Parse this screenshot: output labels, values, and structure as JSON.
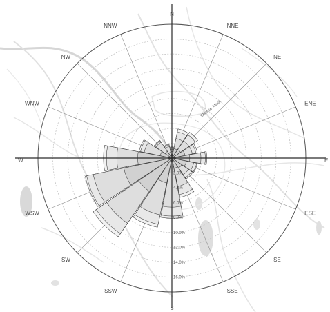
{
  "chart_data": {
    "type": "polar-bar",
    "directions": [
      "N",
      "NNE",
      "NE",
      "ENE",
      "E",
      "ESE",
      "SE",
      "SSE",
      "S",
      "SSW",
      "SW",
      "WSW",
      "W",
      "WNW",
      "NW",
      "NNW"
    ],
    "ring_labels": [
      "2.0%",
      "4.0%",
      "6.0%",
      "8.0%",
      "10.0%",
      "12.0%",
      "14.0%",
      "16.0%"
    ],
    "rmax": 18,
    "series": [
      {
        "values": [
          0.9,
          1.3,
          1.4,
          1.8,
          2.4,
          2.0,
          1.6,
          1.4,
          2.0,
          3.4,
          5.4,
          6.6,
          4.6,
          1.6,
          1.1,
          0.8
        ]
      },
      {
        "values": [
          0.3,
          1.4,
          1.4,
          1.0,
          1.5,
          1.0,
          1.1,
          2.5,
          4.6,
          4.4,
          5.2,
          4.2,
          2.8,
          2.2,
          1.5,
          0.8
        ]
      },
      {
        "values": [
          0.2,
          0.9,
          1.0,
          0.5,
          0.6,
          0.4,
          0.5,
          1.1,
          1.2,
          1.3,
          1.7,
          0.9,
          1.4,
          0.5,
          0.2,
          0.2
        ]
      },
      {
        "values": [
          0.1,
          0.4,
          0.4,
          0.2,
          0.2,
          0.1,
          0.2,
          0.4,
          0.3,
          0.4,
          0.5,
          0.2,
          0.4,
          0.2,
          0.1,
          0.1
        ]
      }
    ],
    "fills": [
      "#cfcfcf",
      "#dcdcdc",
      "#e7e7e7",
      "#f1f1f1"
    ],
    "grid": true,
    "legend": "none"
  },
  "map": {
    "label": "Shosse Alash"
  }
}
